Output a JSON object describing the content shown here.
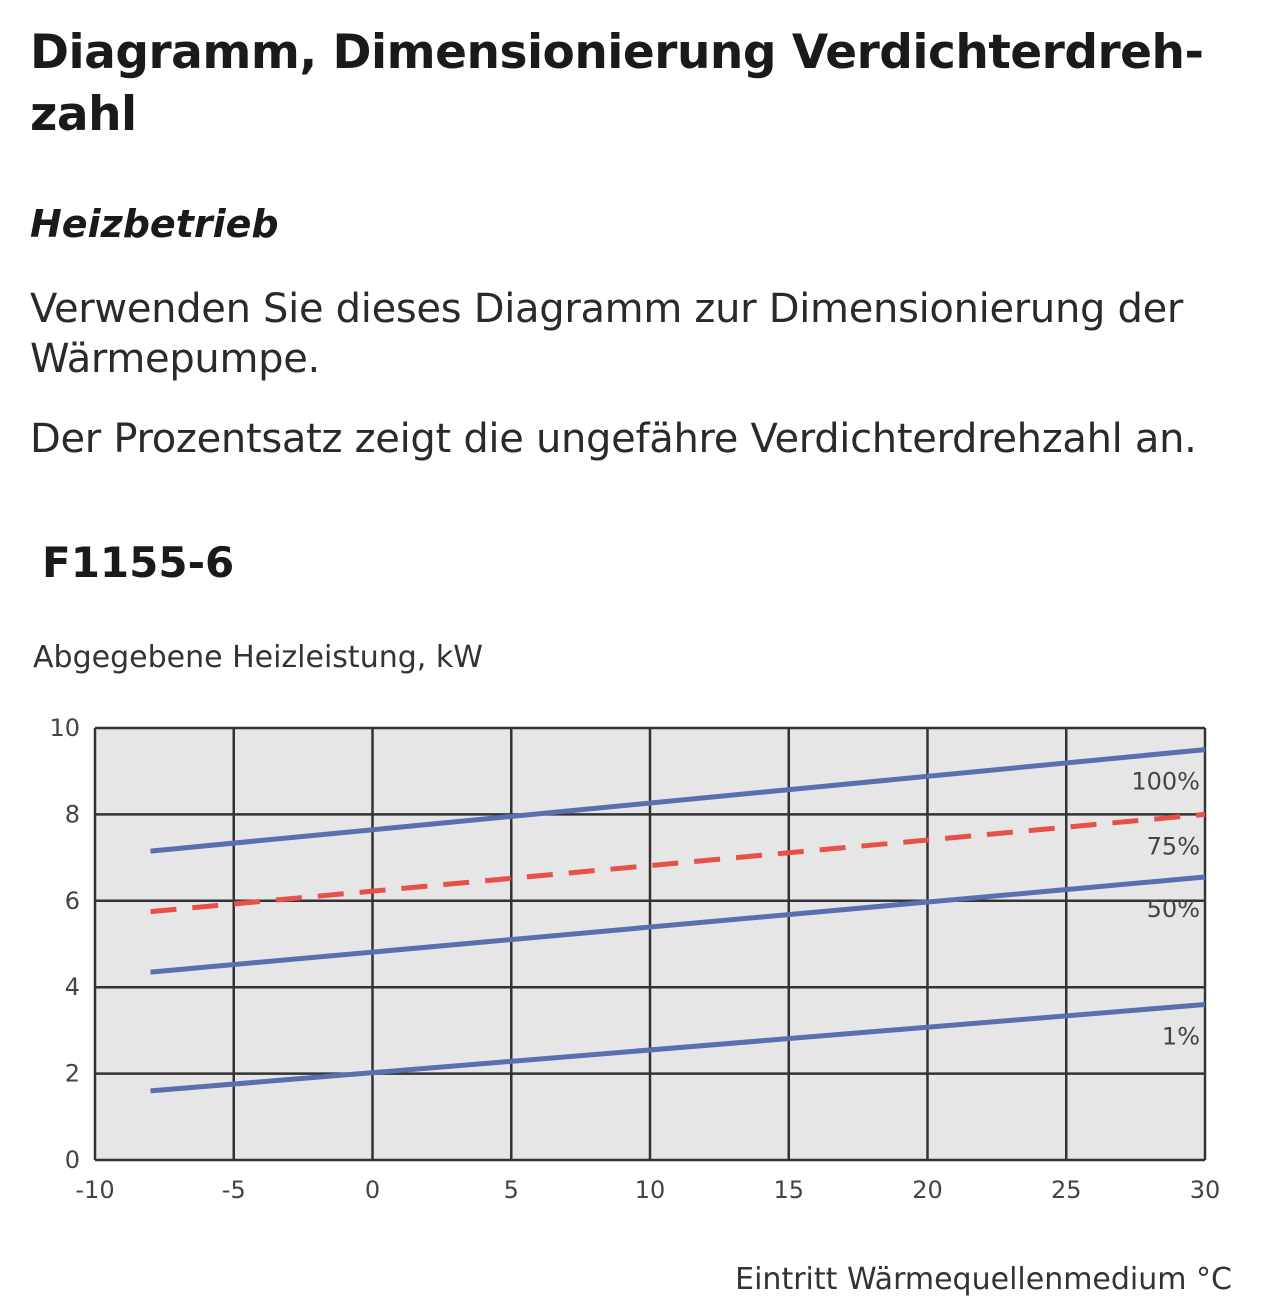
{
  "heading": {
    "title": "Diagramm, Dimensionierung Verdichterdreh-zahl",
    "subtitle": "Heizbetrieb",
    "paragraph1": "Verwenden Sie dieses Diagramm zur Dimensionierung der Wärmepumpe.",
    "paragraph2": "Der Prozentsatz zeigt die ungefähre Verdichterdrehzahl an.",
    "model": "F1155-6"
  },
  "colors": {
    "plot_background": "#e6e6e6",
    "grid": "#333333",
    "series_solid": "#5b6fb0",
    "series_dashed": "#e8504a"
  },
  "chart_data": {
    "type": "line",
    "title": "",
    "xlabel": "Eintritt Wärmequellenmedium °C",
    "ylabel": "Abgegebene Heizleistung, kW",
    "xlim": [
      -10,
      30
    ],
    "ylim": [
      0,
      10
    ],
    "xticks": [
      -10,
      -5,
      0,
      5,
      10,
      15,
      20,
      25,
      30
    ],
    "yticks": [
      0,
      2,
      4,
      6,
      8,
      10
    ],
    "grid": true,
    "series": [
      {
        "name": "100%",
        "style": "solid",
        "x": [
          -8,
          30
        ],
        "y": [
          7.15,
          9.5
        ]
      },
      {
        "name": "75%",
        "style": "dashed",
        "x": [
          -8,
          30
        ],
        "y": [
          5.75,
          8.0
        ]
      },
      {
        "name": "50%",
        "style": "solid",
        "x": [
          -8,
          30
        ],
        "y": [
          4.35,
          6.55
        ]
      },
      {
        "name": "1%",
        "style": "solid",
        "x": [
          -8,
          30
        ],
        "y": [
          1.6,
          3.6
        ]
      }
    ]
  }
}
